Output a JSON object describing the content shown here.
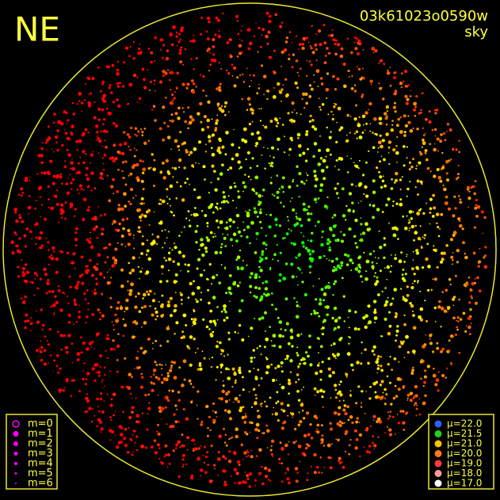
{
  "corner_labels": {
    "direction": "NE",
    "frame_id": "03k61023o0590w",
    "mode": "sky"
  },
  "magnitude_legend": {
    "color": "#ff00ff",
    "items": [
      {
        "label": "m=0"
      },
      {
        "label": "m=1"
      },
      {
        "label": "m=2"
      },
      {
        "label": "m=3"
      },
      {
        "label": "m=4"
      },
      {
        "label": "m=5"
      },
      {
        "label": "m=6"
      }
    ]
  },
  "brightness_legend": {
    "items": [
      {
        "label": "μ=22.0",
        "color": "#2f5fff"
      },
      {
        "label": "μ=21.5",
        "color": "#22d022"
      },
      {
        "label": "μ=21.0",
        "color": "#ffc400"
      },
      {
        "label": "μ=20.0",
        "color": "#ff7a1a"
      },
      {
        "label": "μ=19.0",
        "color": "#ff3a3a"
      },
      {
        "label": "μ=18.0",
        "color": "#ff9a9a"
      },
      {
        "label": "μ=17.0",
        "color": "#ffffff"
      }
    ]
  }
}
